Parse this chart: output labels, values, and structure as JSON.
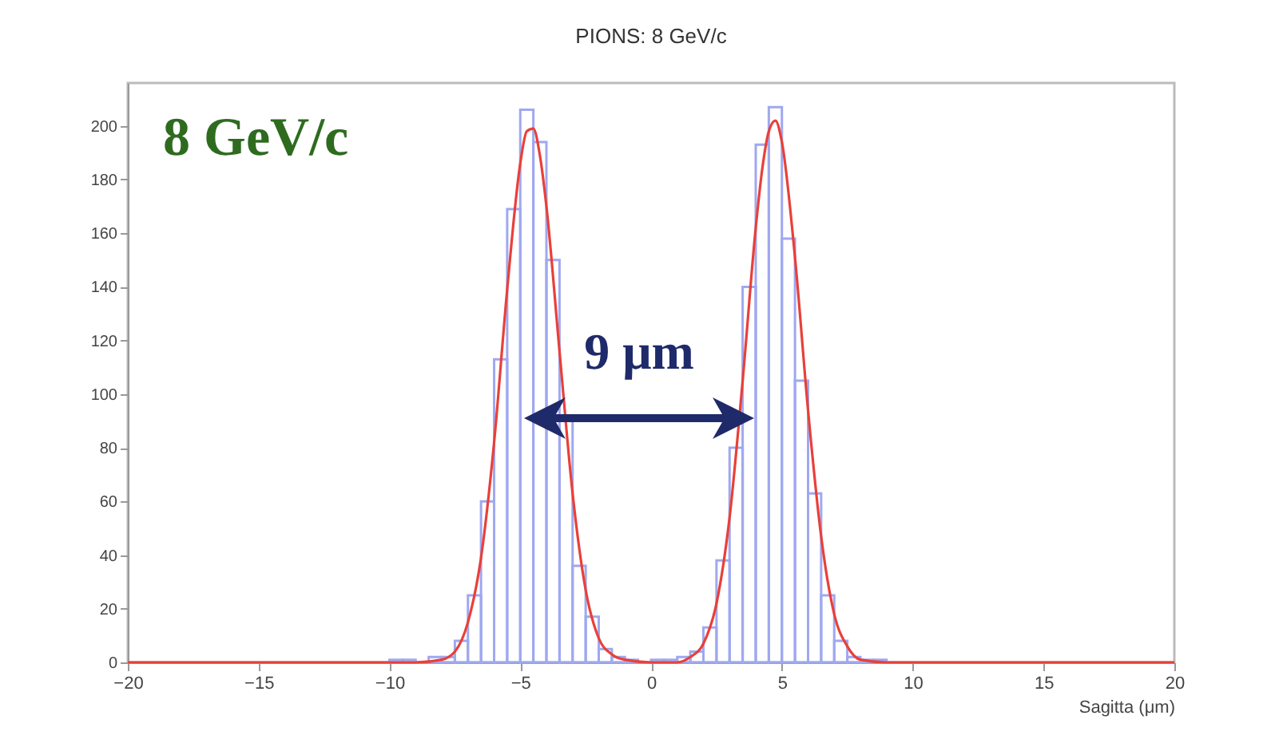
{
  "chart_data": {
    "type": "histogram",
    "title": "PIONS: 8 GeV/c",
    "xlabel": "Sagitta (μm)",
    "bins": [
      -20,
      -19.5,
      -19,
      -18.5,
      -18,
      -17.5,
      -17,
      -16.5,
      -16,
      -15.5,
      -15,
      -14.5,
      -14,
      -13.5,
      -13,
      -12.5,
      -12,
      -11.5,
      -11,
      -10.5,
      -10,
      -9.5,
      -9,
      -8.5,
      -8,
      -7.5,
      -7,
      -6.5,
      -6,
      -5.5,
      -5,
      -4.5,
      -4,
      -3.5,
      -3,
      -2.5,
      -2,
      -1.5,
      -1,
      -0.5,
      0,
      0.5,
      1,
      1.5,
      2,
      2.5,
      3,
      3.5,
      4,
      4.5,
      5,
      5.5,
      6,
      6.5,
      7,
      7.5,
      8,
      8.5,
      9,
      9.5,
      10,
      10.5,
      11,
      11.5,
      12,
      12.5,
      13,
      13.5,
      14,
      14.5,
      15,
      15.5,
      16,
      16.5,
      17,
      17.5,
      18,
      18.5,
      19,
      19.5,
      20
    ],
    "series": [
      {
        "type": "histogram",
        "color": "#9fa8f0",
        "values": [
          0,
          0,
          0,
          0,
          0,
          0,
          0,
          0,
          0,
          0,
          0,
          0,
          0,
          0,
          0,
          0,
          0,
          0,
          0,
          0,
          1,
          1,
          0,
          2,
          2,
          8,
          25,
          60,
          113,
          169,
          206,
          194,
          150,
          90,
          36,
          17,
          5,
          2,
          1,
          0,
          1,
          1,
          2,
          4,
          13,
          38,
          80,
          140,
          193,
          207,
          158,
          105,
          63,
          25,
          8,
          2,
          1,
          1,
          0,
          0,
          0,
          0,
          0,
          0,
          0,
          0,
          0,
          0,
          0,
          0,
          0,
          0,
          0,
          0,
          0,
          0,
          0,
          0,
          0,
          0
        ]
      },
      {
        "type": "line",
        "color": "#e8403a",
        "x": [
          -20,
          -10,
          -9,
          -8,
          -7.5,
          -7,
          -6.5,
          -6,
          -5.5,
          -5,
          -4.75,
          -4.5,
          -4.25,
          -4,
          -3.5,
          -3,
          -2.5,
          -2,
          -1.5,
          -1,
          0,
          1,
          1.5,
          2,
          2.5,
          3,
          3.5,
          4,
          4.25,
          4.5,
          4.75,
          5,
          5.5,
          6,
          6.5,
          7,
          7.5,
          8,
          9,
          10,
          20
        ],
        "values": [
          0,
          0,
          0,
          1,
          4,
          15,
          39,
          82,
          139,
          186,
          198,
          199,
          189,
          170,
          116,
          63,
          27,
          9,
          3,
          1,
          0,
          0,
          2,
          7,
          22,
          54,
          105,
          162,
          184,
          198,
          202,
          194,
          151,
          94,
          47,
          18,
          6,
          1,
          0,
          0,
          0
        ]
      }
    ],
    "xlim": [
      -20,
      20
    ],
    "xticks": [
      -20,
      -15,
      -10,
      -5,
      0,
      5,
      10,
      15,
      20
    ],
    "ylim": [
      0,
      216
    ],
    "yticks": [
      0,
      20,
      40,
      60,
      80,
      100,
      120,
      140,
      160,
      180,
      200
    ],
    "grid": false,
    "annotations": [
      "8 GeV/c",
      "9 μm"
    ]
  }
}
